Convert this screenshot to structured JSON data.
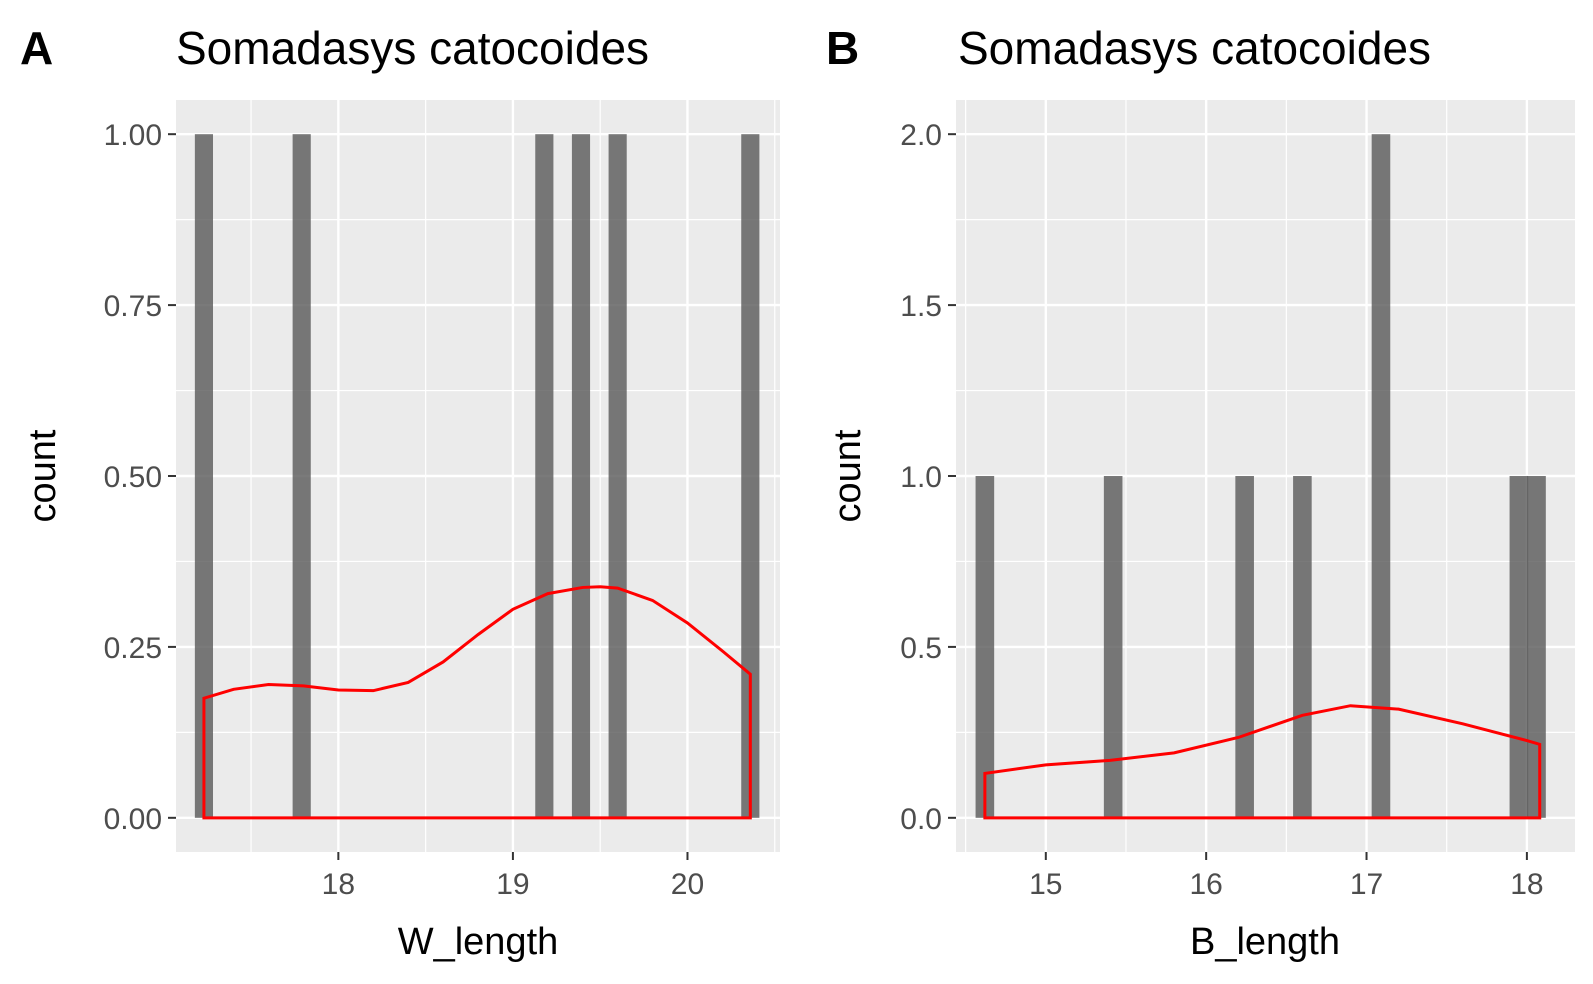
{
  "chart_data": [
    {
      "panel_letter": "A",
      "type": "bar",
      "title": "Somadasys catocoides",
      "xlabel": "W_length",
      "ylabel": "count",
      "xlim": [
        17.07,
        20.53
      ],
      "ylim": [
        -0.05,
        1.05
      ],
      "x_ticks": [
        18,
        19,
        20
      ],
      "x_minor_ticks": [
        17.5,
        18.5,
        19.5,
        20.5
      ],
      "y_ticks": [
        0.0,
        0.25,
        0.5,
        0.75,
        1.0
      ],
      "y_tick_labels": [
        "0.00",
        "0.25",
        "0.50",
        "0.75",
        "1.00"
      ],
      "bar_width": 0.104,
      "bars": [
        {
          "x": 17.23,
          "count": 1
        },
        {
          "x": 17.79,
          "count": 1
        },
        {
          "x": 19.18,
          "count": 1
        },
        {
          "x": 19.39,
          "count": 1
        },
        {
          "x": 19.6,
          "count": 1
        },
        {
          "x": 20.36,
          "count": 1
        }
      ],
      "density": {
        "color": "#ff0000",
        "x": [
          17.23,
          17.4,
          17.6,
          17.8,
          18.0,
          18.2,
          18.4,
          18.6,
          18.8,
          19.0,
          19.2,
          19.4,
          19.5,
          19.6,
          19.8,
          20.0,
          20.2,
          20.36
        ],
        "y": [
          0.175,
          0.188,
          0.195,
          0.193,
          0.187,
          0.186,
          0.198,
          0.228,
          0.268,
          0.305,
          0.328,
          0.337,
          0.338,
          0.336,
          0.318,
          0.285,
          0.244,
          0.21
        ]
      },
      "grid": true,
      "background": "#ebebeb"
    },
    {
      "panel_letter": "B",
      "type": "bar",
      "title": "Somadasys catocoides",
      "xlabel": "B_length",
      "ylabel": "count",
      "xlim": [
        14.44,
        18.3
      ],
      "ylim": [
        -0.1,
        2.1
      ],
      "x_ticks": [
        15,
        16,
        17,
        18
      ],
      "x_minor_ticks": [
        14.5,
        15.5,
        16.5,
        17.5
      ],
      "y_ticks": [
        0.0,
        0.5,
        1.0,
        1.5,
        2.0
      ],
      "y_tick_labels": [
        "0.0",
        "0.5",
        "1.0",
        "1.5",
        "2.0"
      ],
      "bar_width": 0.116,
      "bars": [
        {
          "x": 14.62,
          "count": 1
        },
        {
          "x": 15.42,
          "count": 1
        },
        {
          "x": 16.24,
          "count": 1
        },
        {
          "x": 16.6,
          "count": 1
        },
        {
          "x": 17.09,
          "count": 2
        },
        {
          "x": 17.95,
          "count": 1
        },
        {
          "x": 18.06,
          "count": 1
        }
      ],
      "density": {
        "color": "#ff0000",
        "x": [
          14.62,
          15.0,
          15.4,
          15.8,
          16.2,
          16.6,
          16.9,
          17.2,
          17.6,
          18.0,
          18.08
        ],
        "y": [
          0.13,
          0.155,
          0.168,
          0.19,
          0.235,
          0.3,
          0.328,
          0.318,
          0.275,
          0.226,
          0.215
        ]
      },
      "grid": true,
      "background": "#ebebeb"
    }
  ]
}
